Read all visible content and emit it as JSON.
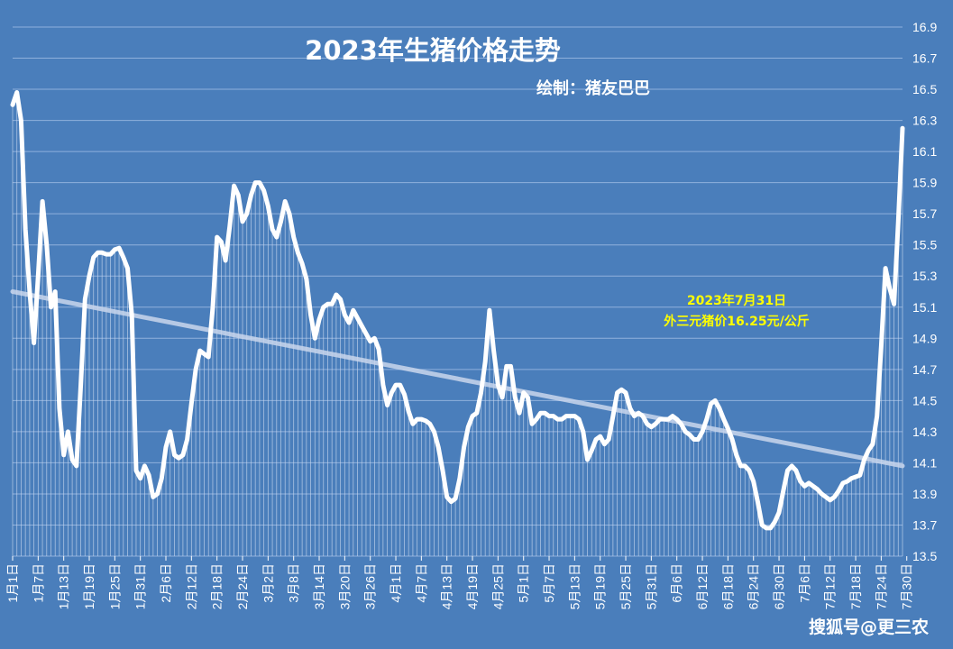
{
  "chart_data": {
    "type": "line",
    "title": "2023年生猪价格走势",
    "subtitle": "绘制：猪友巴巴",
    "annotation": {
      "line1": "2023年7月31日",
      "line2": "外三元猪价16.25元/公斤"
    },
    "watermark": "搜狐号@更三农",
    "ylim": [
      13.5,
      16.9
    ],
    "yticks": [
      "16.9",
      "16.7",
      "16.5",
      "16.3",
      "16.1",
      "15.9",
      "15.7",
      "15.5",
      "15.3",
      "15.1",
      "14.9",
      "14.7",
      "14.5",
      "14.3",
      "14.1",
      "13.9",
      "13.7",
      "13.5"
    ],
    "xticks": [
      "1月1日",
      "1月7日",
      "1月13日",
      "1月19日",
      "1月25日",
      "1月31日",
      "2月6日",
      "2月12日",
      "2月18日",
      "2月24日",
      "3月2日",
      "3月8日",
      "3月14日",
      "3月20日",
      "3月26日",
      "4月1日",
      "4月7日",
      "4月13日",
      "4月19日",
      "4月25日",
      "5月1日",
      "5月7日",
      "5月13日",
      "5月19日",
      "5月25日",
      "5月31日",
      "6月6日",
      "6月12日",
      "6月18日",
      "6月24日",
      "6月30日",
      "7月6日",
      "7月12日",
      "7月18日",
      "7月24日",
      "7月30日"
    ],
    "series": [
      {
        "values": [
          16.4,
          16.48,
          16.3,
          15.6,
          15.2,
          14.87,
          15.3,
          15.78,
          15.5,
          15.1,
          15.2,
          14.45,
          14.15,
          14.3,
          14.12,
          14.08,
          14.6,
          15.15,
          15.3,
          15.42,
          15.45,
          15.45,
          15.44,
          15.44,
          15.47,
          15.48,
          15.42,
          15.35,
          15.05,
          14.05,
          14.0,
          14.08,
          14.02,
          13.88,
          13.9,
          14.0,
          14.2,
          14.3,
          14.15,
          14.13,
          14.15,
          14.25,
          14.48,
          14.7,
          14.82,
          14.8,
          14.78,
          15.1,
          15.55,
          15.52,
          15.4,
          15.62,
          15.88,
          15.82,
          15.65,
          15.7,
          15.82,
          15.9,
          15.9,
          15.85,
          15.75,
          15.6,
          15.55,
          15.65,
          15.78,
          15.7,
          15.55,
          15.45,
          15.38,
          15.28,
          15.05,
          14.9,
          15.02,
          15.1,
          15.12,
          15.12,
          15.18,
          15.15,
          15.05,
          15.0,
          15.08,
          15.03,
          14.98,
          14.93,
          14.88,
          14.9,
          14.83,
          14.6,
          14.47,
          14.55,
          14.6,
          14.6,
          14.54,
          14.43,
          14.35,
          14.38,
          14.38,
          14.37,
          14.35,
          14.3,
          14.2,
          14.05,
          13.88,
          13.85,
          13.87,
          14.0,
          14.2,
          14.33,
          14.4,
          14.42,
          14.55,
          14.75,
          15.08,
          14.82,
          14.6,
          14.52,
          14.72,
          14.72,
          14.52,
          14.42,
          14.55,
          14.52,
          14.35,
          14.38,
          14.42,
          14.42,
          14.4,
          14.4,
          14.38,
          14.38,
          14.4,
          14.4,
          14.4,
          14.38,
          14.3,
          14.12,
          14.18,
          14.25,
          14.27,
          14.22,
          14.25,
          14.4,
          14.55,
          14.57,
          14.55,
          14.45,
          14.4,
          14.42,
          14.4,
          14.35,
          14.33,
          14.35,
          14.38,
          14.38,
          14.38,
          14.4,
          14.38,
          14.35,
          14.3,
          14.28,
          14.25,
          14.25,
          14.3,
          14.38,
          14.48,
          14.5,
          14.45,
          14.38,
          14.32,
          14.25,
          14.15,
          14.08,
          14.08,
          14.05,
          13.98,
          13.85,
          13.7,
          13.68,
          13.68,
          13.72,
          13.78,
          13.92,
          14.05,
          14.08,
          14.05,
          13.98,
          13.95,
          13.97,
          13.95,
          13.93,
          13.9,
          13.88,
          13.86,
          13.88,
          13.92,
          13.97,
          13.98,
          14.0,
          14.01,
          14.02,
          14.12,
          14.18,
          14.22,
          14.4,
          14.85,
          15.35,
          15.22,
          15.12,
          15.65,
          16.25
        ]
      }
    ],
    "trendline": {
      "start": 15.2,
      "end": 14.08
    },
    "grid": true,
    "colors": {
      "background": "#4a7ebb",
      "line": "#ffffff",
      "trend": "#c9d6ec",
      "annotation": "#ffff00"
    }
  }
}
